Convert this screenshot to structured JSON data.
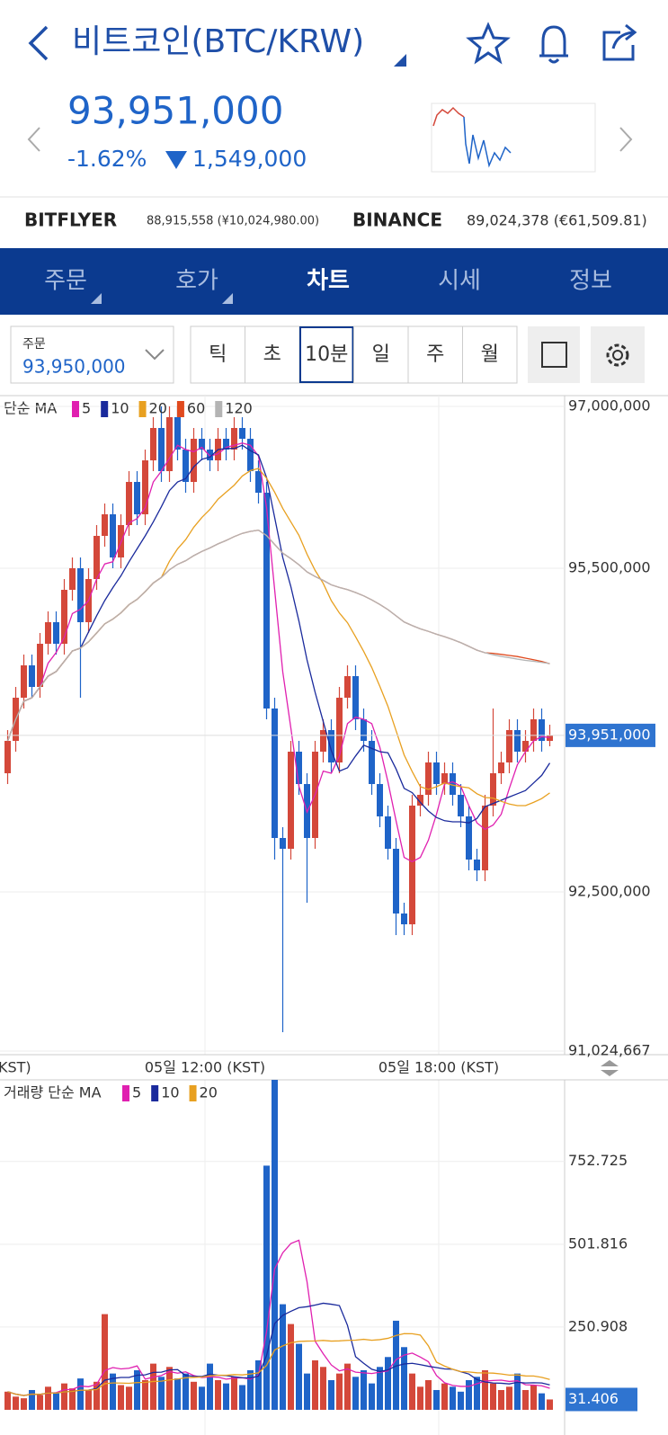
{
  "header": {
    "title": "비트코인(BTC/KRW)",
    "price": "93,951,000",
    "change_rate": "-1.62%",
    "change": "1,549,000"
  },
  "exchanges": [
    {
      "name": "BITFLYER",
      "quote": "88,915,558 (¥10,024,980.00)"
    },
    {
      "name": "BINANCE",
      "quote": "89,024,378 (€61,509.81)"
    }
  ],
  "tabs": [
    "주문",
    "호가",
    "차트",
    "시세",
    "정보"
  ],
  "order": {
    "label": "주문",
    "price": "93,950,000"
  },
  "intervals": [
    "틱",
    "초",
    "10분",
    "일",
    "주",
    "월"
  ],
  "chart": {
    "legend_title": "단순 MA",
    "ma": [
      {
        "period": 5,
        "color": "#e020b0"
      },
      {
        "period": 10,
        "color": "#1a2a9c"
      },
      {
        "period": 20,
        "color": "#e8a020"
      },
      {
        "period": 60,
        "color": "#e04a1e"
      },
      {
        "period": 120,
        "color": "#b4b4b4"
      }
    ],
    "up_color": "#d4483a",
    "down_color": "#1f64c8",
    "ylim": [
      91000000,
      97100000
    ],
    "yticks": [
      {
        "value": 97000000,
        "label": "97,000,000"
      },
      {
        "value": 95500000,
        "label": "95,500,000"
      },
      {
        "value": 92500000,
        "label": "92,500,000"
      },
      {
        "value": 91024667,
        "label": "91,024,667"
      }
    ],
    "current": {
      "value": 93951000,
      "label": "93,951,000"
    },
    "time_labels": [
      "KST)",
      "05일 12:00 (KST)",
      "05일 18:00 (KST)"
    ],
    "open": [
      93600000,
      93900000,
      94300000,
      94600000,
      94400000,
      94800000,
      95000000,
      94800000,
      95300000,
      95500000,
      95000000,
      95400000,
      95800000,
      96000000,
      95600000,
      95900000,
      96300000,
      96000000,
      96500000,
      96800000,
      96400000,
      96900000,
      96600000,
      96300000,
      96700000,
      96600000,
      96500000,
      96700000,
      96600000,
      96800000,
      96700000,
      96400000,
      96200000,
      94200000,
      93000000,
      92900000,
      93800000,
      93500000,
      93000000,
      93800000,
      94000000,
      93700000,
      94300000,
      94500000,
      94100000,
      93900000,
      93500000,
      93200000,
      92900000,
      92300000,
      92200000,
      93300000,
      93400000,
      93700000,
      93500000,
      93600000,
      93400000,
      93200000,
      92800000,
      92700000,
      93300000,
      93600000,
      93700000,
      94000000,
      93800000,
      93900000,
      94100000,
      93900000
    ],
    "high": [
      94000000,
      94400000,
      94700000,
      94700000,
      94900000,
      95100000,
      95100000,
      95400000,
      95600000,
      95600000,
      95500000,
      95900000,
      96100000,
      96100000,
      96000000,
      96400000,
      96400000,
      96600000,
      96900000,
      97000000,
      97000000,
      97000000,
      96700000,
      96800000,
      96800000,
      96700000,
      96800000,
      96800000,
      96900000,
      96900000,
      96800000,
      96500000,
      96300000,
      94300000,
      93100000,
      93900000,
      93900000,
      93600000,
      93900000,
      94100000,
      94100000,
      94400000,
      94600000,
      94600000,
      94200000,
      94000000,
      93600000,
      93300000,
      93000000,
      92400000,
      93400000,
      93500000,
      93800000,
      93800000,
      93700000,
      93700000,
      93500000,
      93300000,
      92900000,
      93400000,
      94200000,
      93800000,
      94100000,
      94100000,
      94000000,
      94200000,
      94200000,
      94050000
    ],
    "low": [
      93500000,
      93800000,
      94200000,
      94300000,
      94300000,
      94700000,
      94700000,
      94700000,
      95200000,
      94300000,
      94900000,
      95300000,
      95700000,
      95500000,
      95500000,
      95800000,
      95900000,
      95900000,
      96400000,
      96300000,
      96300000,
      96500000,
      96200000,
      96200000,
      96500000,
      96400000,
      96400000,
      96500000,
      96500000,
      96600000,
      96300000,
      96100000,
      94100000,
      92800000,
      91200000,
      92800000,
      93400000,
      92400000,
      92900000,
      93700000,
      93600000,
      93600000,
      94200000,
      94000000,
      93800000,
      93400000,
      93100000,
      92800000,
      92100000,
      92100000,
      92100000,
      93200000,
      93300000,
      93400000,
      93400000,
      93300000,
      93100000,
      92700000,
      92600000,
      92600000,
      93200000,
      93500000,
      93600000,
      93700000,
      93700000,
      93800000,
      93800000,
      93850000
    ],
    "close": [
      93900000,
      94300000,
      94600000,
      94400000,
      94800000,
      95000000,
      94800000,
      95300000,
      95500000,
      95000000,
      95400000,
      95800000,
      96000000,
      95600000,
      95900000,
      96300000,
      96000000,
      96500000,
      96800000,
      96400000,
      96900000,
      96600000,
      96300000,
      96700000,
      96600000,
      96500000,
      96700000,
      96600000,
      96800000,
      96700000,
      96400000,
      96200000,
      94200000,
      93000000,
      92900000,
      93800000,
      93500000,
      93000000,
      93800000,
      94000000,
      93700000,
      94300000,
      94500000,
      94100000,
      93900000,
      93500000,
      93200000,
      92900000,
      92300000,
      92200000,
      93300000,
      93400000,
      93700000,
      93500000,
      93600000,
      93400000,
      93200000,
      92800000,
      92700000,
      93300000,
      93600000,
      93700000,
      94000000,
      93800000,
      93900000,
      94100000,
      93900000,
      93951000
    ]
  },
  "volume": {
    "legend_title": "거래량 단순 MA",
    "ma": [
      {
        "period": 5,
        "color": "#e020b0"
      },
      {
        "period": 10,
        "color": "#1a2a9c"
      },
      {
        "period": 20,
        "color": "#e8a020"
      }
    ],
    "ylim": [
      0,
      1000
    ],
    "yticks": [
      752.725,
      501.816,
      250.908
    ],
    "current": 31.406,
    "values": [
      55,
      40,
      35,
      60,
      45,
      70,
      50,
      80,
      65,
      95,
      60,
      85,
      290,
      110,
      75,
      70,
      120,
      90,
      140,
      100,
      130,
      95,
      110,
      85,
      70,
      140,
      90,
      80,
      100,
      75,
      120,
      150,
      740,
      1050,
      320,
      260,
      200,
      110,
      150,
      130,
      90,
      110,
      140,
      100,
      120,
      80,
      130,
      160,
      270,
      190,
      110,
      70,
      90,
      60,
      80,
      70,
      55,
      90,
      100,
      120,
      80,
      60,
      70,
      110,
      60,
      75,
      50,
      31.406
    ]
  }
}
